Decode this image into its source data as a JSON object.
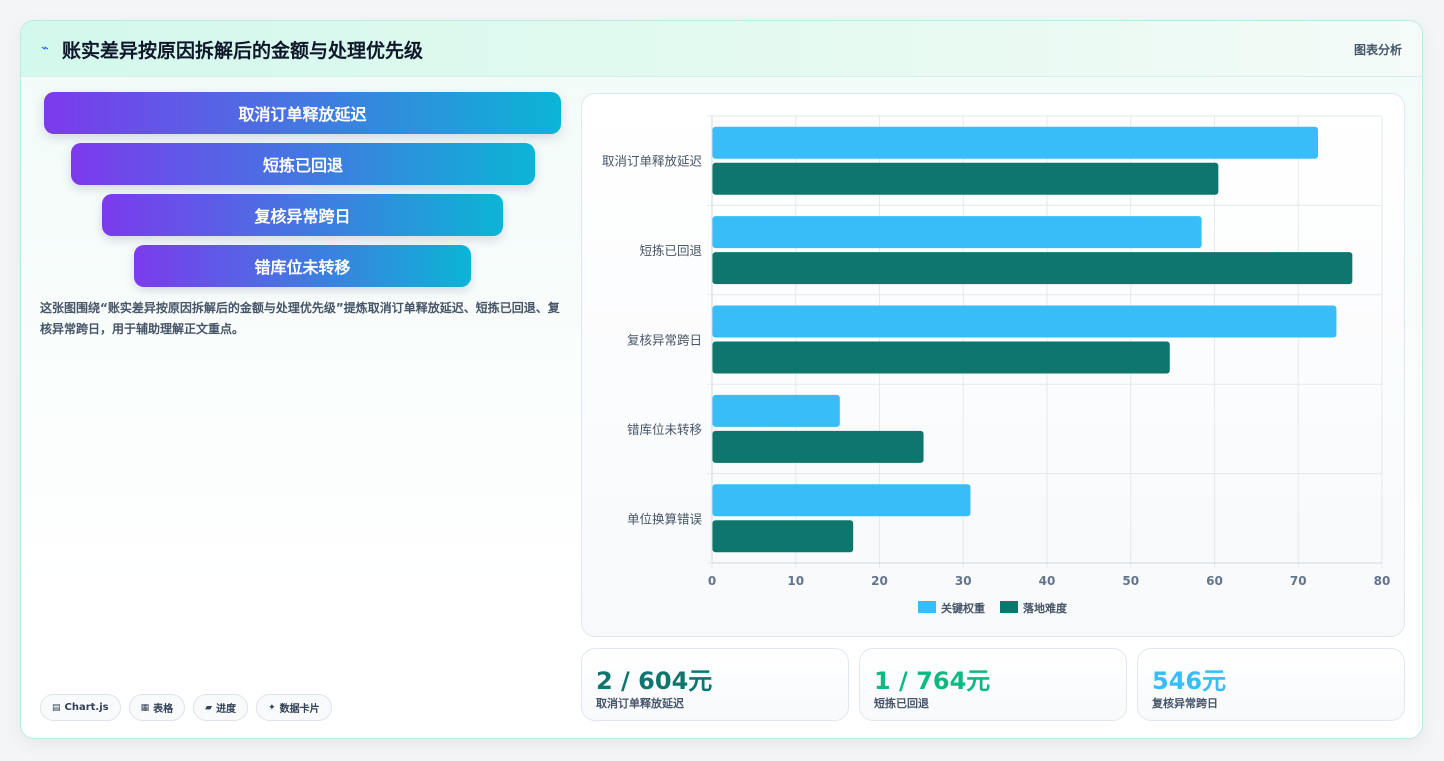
{
  "header": {
    "icon": "chart-line-icon",
    "title": "账实差异按原因拆解后的金额与处理优先级",
    "tag": "图表分析"
  },
  "funnel": {
    "items": [
      "取消订单释放延迟",
      "短拣已回退",
      "复核异常跨日",
      "错库位未转移"
    ]
  },
  "description": "这张图围绕“账实差异按原因拆解后的金额与处理优先级”提炼取消订单释放延迟、短拣已回退、复核异常跨日，用于辅助理解正文重点。",
  "chips": [
    {
      "icon": "chart-icon",
      "glyph": "▤",
      "label": "Chart.js"
    },
    {
      "icon": "table-icon",
      "glyph": "▦",
      "label": "表格"
    },
    {
      "icon": "progress-icon",
      "glyph": "▰",
      "label": "进度"
    },
    {
      "icon": "sparkle-icon",
      "glyph": "✦",
      "label": "数据卡片"
    }
  ],
  "kpis": [
    {
      "value": "2 / 604元",
      "label": "取消订单释放延迟",
      "color": "#0f766e"
    },
    {
      "value": "1 / 764元",
      "label": "短拣已回退",
      "color": "#10b981"
    },
    {
      "value": "546元",
      "label": "复核异常跨日",
      "color": "#38bdf8"
    }
  ],
  "chart_data": {
    "type": "bar",
    "orientation": "horizontal",
    "categories": [
      "取消订单释放延迟",
      "短拣已回退",
      "复核异常跨日",
      "错库位未转移",
      "单位换算错误"
    ],
    "series": [
      {
        "name": "关键权重",
        "color": "#38bdf8",
        "values": [
          72.3,
          58.4,
          74.5,
          15.2,
          30.8
        ]
      },
      {
        "name": "落地难度",
        "color": "#0f766e",
        "values": [
          60.4,
          76.4,
          54.6,
          25.2,
          16.8
        ]
      }
    ],
    "xlim": [
      0,
      80
    ],
    "xticks": [
      0,
      10,
      20,
      30,
      40,
      50,
      60,
      70,
      80
    ],
    "grid": true,
    "legend_position": "bottom"
  }
}
